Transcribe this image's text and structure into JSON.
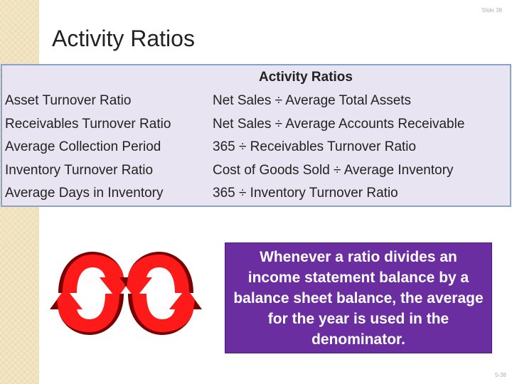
{
  "slide_label": "Slide 38",
  "title": "Activity Ratios",
  "table": {
    "header": "Activity Ratios",
    "rows": [
      {
        "name": "Asset Turnover Ratio",
        "formula": "Net Sales ÷ Average Total Assets"
      },
      {
        "name": "Receivables Turnover Ratio",
        "formula": "Net Sales ÷ Average Accounts Receivable"
      },
      {
        "name": "Average Collection Period",
        "formula": "365 ÷ Receivables Turnover Ratio"
      },
      {
        "name": "Inventory Turnover Ratio",
        "formula": "Cost of Goods Sold ÷ Average Inventory"
      },
      {
        "name": "Average Days in Inventory",
        "formula": "365 ÷ Inventory Turnover Ratio"
      }
    ]
  },
  "callout": "Whenever a ratio divides an income statement balance by a balance sheet balance, the average for the year is used in the denominator.",
  "footer_page": "5-38",
  "colors": {
    "table_bg": "#e9e4f1",
    "table_border": "#8aa2c6",
    "callout_bg": "#6a2ea0",
    "arrow_light": "#ff1a1a",
    "arrow_dark": "#7a0000"
  },
  "icons": [
    "cycle-arrows-icon",
    "cycle-arrows-icon"
  ]
}
